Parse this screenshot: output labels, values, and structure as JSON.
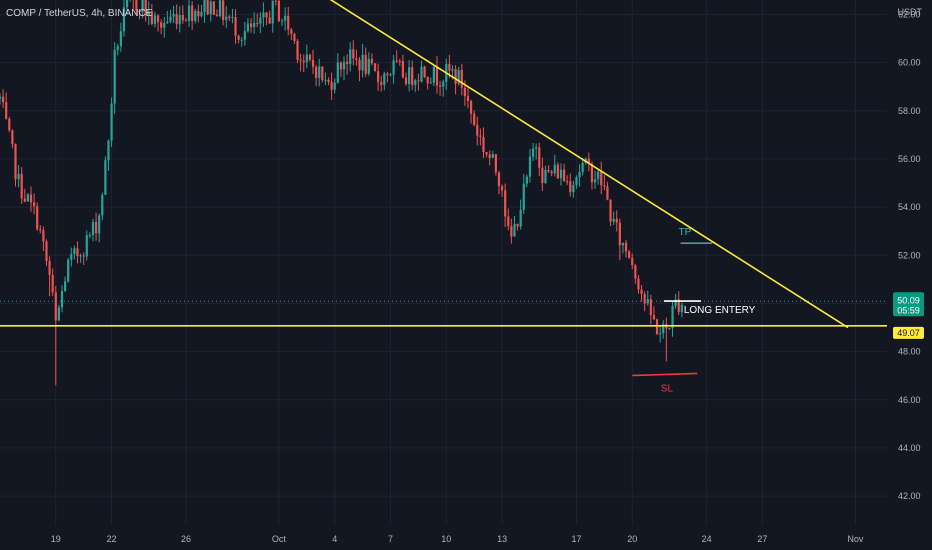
{
  "header": {
    "symbol_line": "COMP / TetherUS, 4h, BINANCE",
    "currency": "USDT"
  },
  "chart_data": {
    "type": "candlestick",
    "symbol": "COMP / TetherUS",
    "interval": "4h",
    "exchange": "BINANCE",
    "ylim": [
      40.8,
      62.6
    ],
    "y_ticks": [
      42.0,
      44.0,
      46.0,
      48.0,
      50.0,
      52.0,
      54.0,
      56.0,
      58.0,
      60.0,
      62.0
    ],
    "x_ticks": [
      {
        "label": "19",
        "day": 19
      },
      {
        "label": "22",
        "day": 22
      },
      {
        "label": "26",
        "day": 26
      },
      {
        "label": "Oct",
        "day": 31
      },
      {
        "label": "4",
        "day": 34
      },
      {
        "label": "7",
        "day": 37
      },
      {
        "label": "10",
        "day": 40
      },
      {
        "label": "13",
        "day": 43
      },
      {
        "label": "17",
        "day": 47
      },
      {
        "label": "20",
        "day": 50
      },
      {
        "label": "24",
        "day": 54
      },
      {
        "label": "27",
        "day": 57
      },
      {
        "label": "Nov",
        "day": 62
      }
    ],
    "xlim": [
      16.0,
      63.7
    ],
    "current_price": "50.09",
    "countdown": "05:59",
    "support_price": "49.07",
    "colors": {
      "up": "#26a69a",
      "down": "#ef5350",
      "trendline": "#ffeb3b",
      "tp": "#4db6ac",
      "sl": "#f23645",
      "price_badge": "#089981",
      "level_badge": "#ffeb3b"
    },
    "path_anchors": [
      [
        16.0,
        58.5
      ],
      [
        17.0,
        55.0
      ],
      [
        18.0,
        53.5
      ],
      [
        18.7,
        51.0
      ],
      [
        19.0,
        49.1
      ],
      [
        19.6,
        51.5
      ],
      [
        20.6,
        52.5
      ],
      [
        21.3,
        53.5
      ],
      [
        21.8,
        56.5
      ],
      [
        22.2,
        60.5
      ],
      [
        22.8,
        62.3
      ],
      [
        23.5,
        62.5
      ],
      [
        24.5,
        61.5
      ],
      [
        25.5,
        62.0
      ],
      [
        26.5,
        62.2
      ],
      [
        27.5,
        62.4
      ],
      [
        28.3,
        61.8
      ],
      [
        29.0,
        61.2
      ],
      [
        30.0,
        61.5
      ],
      [
        30.8,
        62.3
      ],
      [
        31.5,
        61.5
      ],
      [
        32.3,
        60.0
      ],
      [
        33.0,
        59.8
      ],
      [
        33.6,
        59.0
      ],
      [
        34.5,
        60.2
      ],
      [
        35.5,
        60.0
      ],
      [
        36.3,
        59.3
      ],
      [
        37.2,
        59.8
      ],
      [
        38.0,
        59.4
      ],
      [
        38.7,
        59.7
      ],
      [
        39.5,
        59.4
      ],
      [
        40.3,
        59.6
      ],
      [
        40.8,
        59.2
      ],
      [
        41.5,
        57.5
      ],
      [
        42.0,
        56.5
      ],
      [
        42.5,
        55.8
      ],
      [
        43.0,
        55.0
      ],
      [
        43.4,
        52.4
      ],
      [
        43.8,
        53.5
      ],
      [
        44.3,
        55.0
      ],
      [
        44.8,
        56.8
      ],
      [
        45.2,
        55.3
      ],
      [
        46.0,
        55.5
      ],
      [
        46.6,
        55.0
      ],
      [
        47.3,
        55.7
      ],
      [
        47.8,
        55.5
      ],
      [
        48.4,
        55.0
      ],
      [
        48.9,
        53.5
      ],
      [
        49.4,
        52.5
      ],
      [
        49.9,
        52.0
      ],
      [
        50.3,
        51.0
      ],
      [
        50.7,
        50.0
      ],
      [
        51.1,
        49.3
      ],
      [
        51.5,
        48.8
      ],
      [
        51.9,
        49.0
      ],
      [
        52.3,
        50.0
      ],
      [
        52.7,
        50.09
      ]
    ],
    "annotations": [
      {
        "kind": "trendline",
        "points": [
          [
            33.4,
            62.8
          ],
          [
            61.6,
            49.0
          ]
        ]
      },
      {
        "kind": "horizontal_line",
        "price": 49.07
      },
      {
        "kind": "target_line",
        "label": "TP",
        "price": 52.5,
        "x_range": [
          52.6,
          54.3
        ]
      },
      {
        "kind": "entry_line",
        "label": "LONG ENTERY",
        "price": 50.1,
        "x_range": [
          51.7,
          53.7
        ]
      },
      {
        "kind": "stop_line",
        "label": "SL",
        "price": 47.05,
        "x_range": [
          50.0,
          53.5
        ]
      }
    ]
  }
}
